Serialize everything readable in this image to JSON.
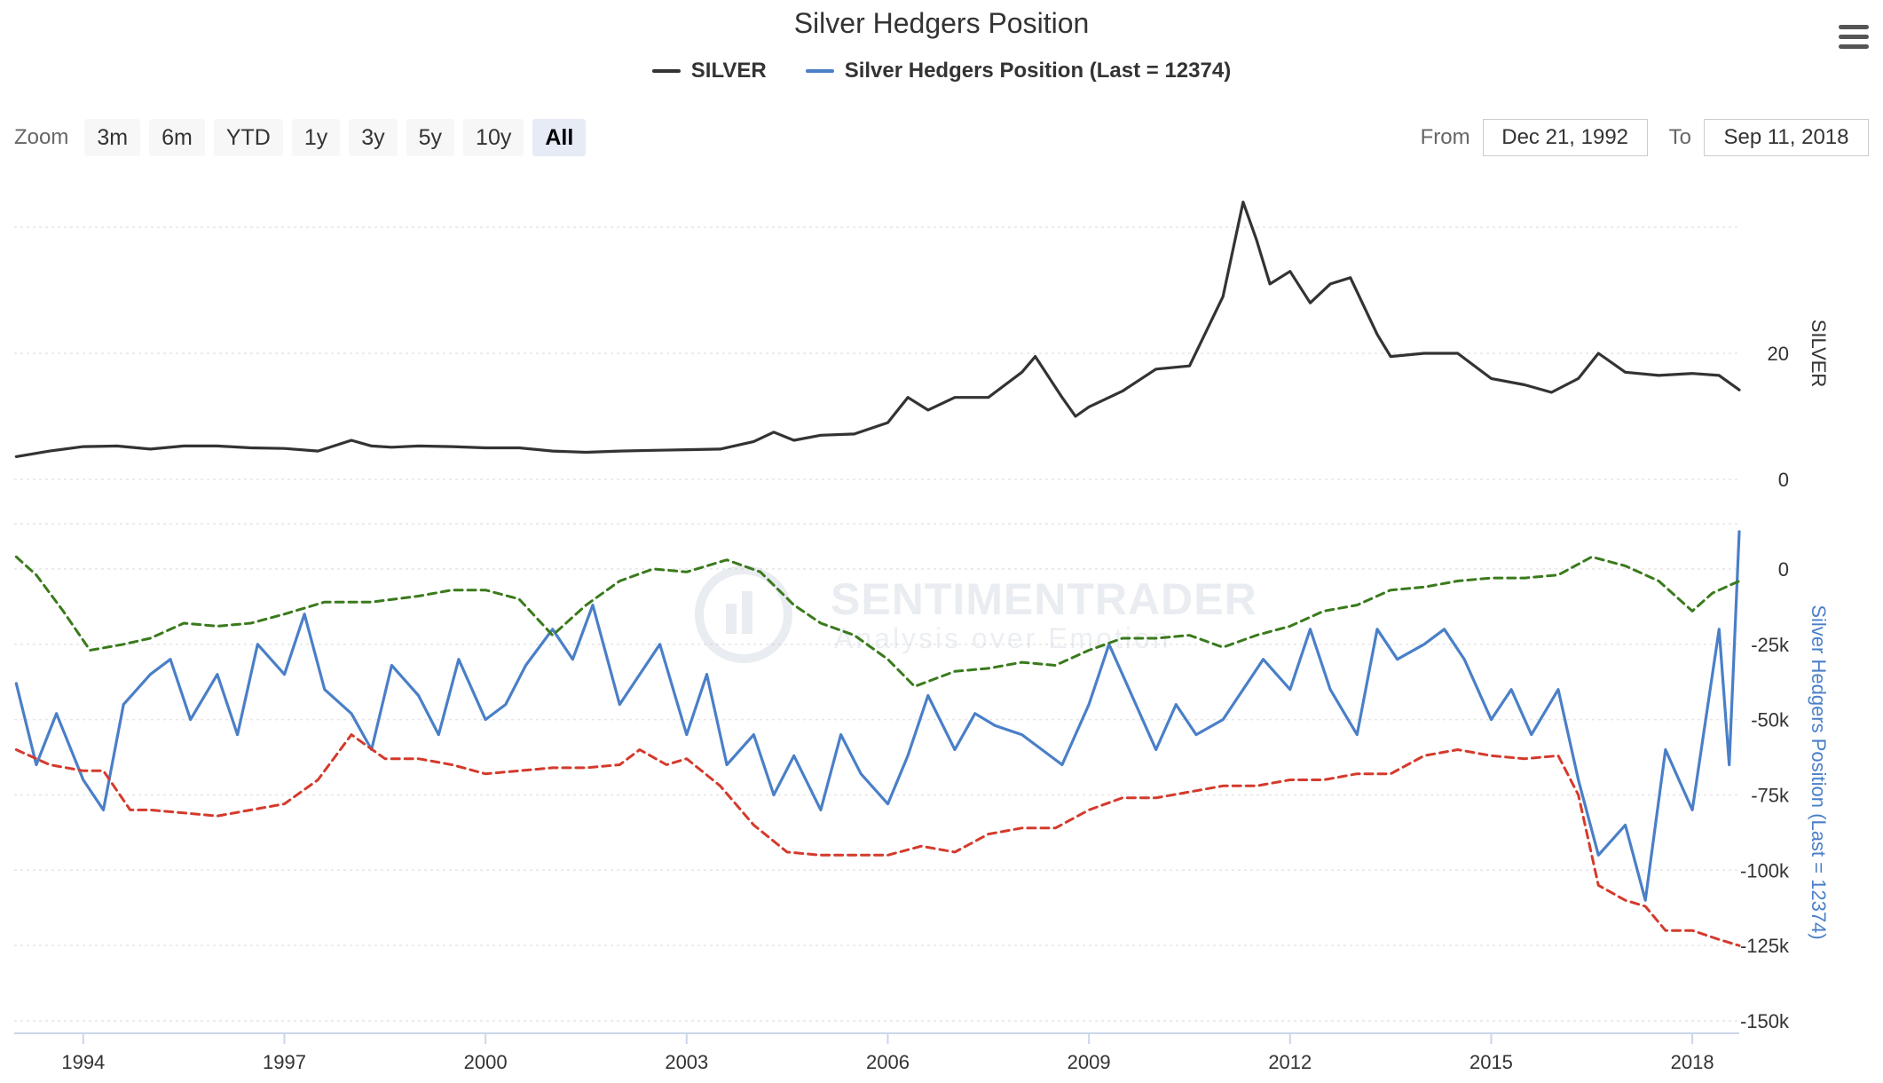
{
  "title": "Silver Hedgers Position",
  "menu_icon": "hamburger-menu-icon",
  "legend": [
    {
      "label": "SILVER",
      "color": "#333333"
    },
    {
      "label": "Silver Hedgers Position (Last = 12374)",
      "color": "#4a7fc8"
    }
  ],
  "zoom": {
    "label": "Zoom",
    "buttons": [
      "3m",
      "6m",
      "YTD",
      "1y",
      "3y",
      "5y",
      "10y",
      "All"
    ],
    "active": "All"
  },
  "range": {
    "from_label": "From",
    "from_value": "Dec 21, 1992",
    "to_label": "To",
    "to_value": "Sep 11, 2018"
  },
  "watermark": {
    "line1": "SENTIMENTRADER",
    "line2": "Analysis over Emotion"
  },
  "chart_data": {
    "type": "line",
    "x_range": [
      1992.97,
      2018.7
    ],
    "x_ticks": [
      "1994",
      "1997",
      "2000",
      "2003",
      "2006",
      "2009",
      "2012",
      "2015",
      "2018"
    ],
    "x_tick_values": [
      1994,
      1997,
      2000,
      2003,
      2006,
      2009,
      2012,
      2015,
      2018
    ],
    "panels": [
      {
        "name": "price",
        "ylabel": "SILVER",
        "ylim": [
          0,
          40
        ],
        "y_ticks": [
          0,
          20
        ],
        "tick_labels": [
          "0",
          "20"
        ],
        "series": [
          {
            "name": "SILVER",
            "color": "#333333",
            "style": "solid",
            "x": [
              1993.0,
              1993.5,
              1994.0,
              1994.5,
              1995.0,
              1995.5,
              1996.0,
              1996.5,
              1997.0,
              1997.5,
              1998.0,
              1998.3,
              1998.6,
              1999.0,
              1999.5,
              2000.0,
              2000.5,
              2001.0,
              2001.5,
              2002.0,
              2002.5,
              2003.0,
              2003.5,
              2004.0,
              2004.3,
              2004.6,
              2005.0,
              2005.5,
              2006.0,
              2006.3,
              2006.6,
              2007.0,
              2007.5,
              2008.0,
              2008.2,
              2008.6,
              2008.8,
              2009.0,
              2009.5,
              2010.0,
              2010.5,
              2011.0,
              2011.3,
              2011.5,
              2011.7,
              2012.0,
              2012.3,
              2012.6,
              2012.9,
              2013.3,
              2013.5,
              2014.0,
              2014.5,
              2015.0,
              2015.5,
              2015.9,
              2016.3,
              2016.6,
              2017.0,
              2017.5,
              2018.0,
              2018.4,
              2018.7
            ],
            "y": [
              3.6,
              4.5,
              5.2,
              5.3,
              4.8,
              5.3,
              5.3,
              5.0,
              4.9,
              4.5,
              6.2,
              5.3,
              5.1,
              5.3,
              5.2,
              5.0,
              5.0,
              4.5,
              4.3,
              4.5,
              4.6,
              4.7,
              4.8,
              6.0,
              7.5,
              6.2,
              7.0,
              7.2,
              9.0,
              13.0,
              11.0,
              13.0,
              13.0,
              17.0,
              19.5,
              13.0,
              10.0,
              11.5,
              14.0,
              17.5,
              18.0,
              29.0,
              44.0,
              38.0,
              31.0,
              33.0,
              28.0,
              31.0,
              32.0,
              23.0,
              19.5,
              20.0,
              20.0,
              16.0,
              15.0,
              13.8,
              16.0,
              20.0,
              17.0,
              16.5,
              16.8,
              16.5,
              14.2
            ]
          }
        ]
      },
      {
        "name": "hedgers",
        "ylabel": "Silver Hedgers Position (Last = 12374)",
        "ylim": [
          -150000,
          15000
        ],
        "y_ticks": [
          0,
          -25000,
          -50000,
          -75000,
          -100000,
          -125000,
          -150000
        ],
        "tick_labels": [
          "0",
          "-25k",
          "-50k",
          "-75k",
          "-100k",
          "-125k",
          "-150k"
        ],
        "series": [
          {
            "name": "Silver Hedgers Position",
            "color": "#4a7fc8",
            "style": "solid",
            "x": [
              1993.0,
              1993.3,
              1993.6,
              1994.0,
              1994.3,
              1994.6,
              1995.0,
              1995.3,
              1995.6,
              1996.0,
              1996.3,
              1996.6,
              1997.0,
              1997.3,
              1997.6,
              1998.0,
              1998.3,
              1998.6,
              1999.0,
              1999.3,
              1999.6,
              2000.0,
              2000.3,
              2000.6,
              2001.0,
              2001.3,
              2001.6,
              2002.0,
              2002.3,
              2002.6,
              2003.0,
              2003.3,
              2003.6,
              2004.0,
              2004.3,
              2004.6,
              2005.0,
              2005.3,
              2005.6,
              2006.0,
              2006.3,
              2006.6,
              2007.0,
              2007.3,
              2007.6,
              2008.0,
              2008.3,
              2008.6,
              2009.0,
              2009.3,
              2009.6,
              2010.0,
              2010.3,
              2010.6,
              2011.0,
              2011.3,
              2011.6,
              2012.0,
              2012.3,
              2012.6,
              2013.0,
              2013.3,
              2013.6,
              2014.0,
              2014.3,
              2014.6,
              2015.0,
              2015.3,
              2015.6,
              2016.0,
              2016.3,
              2016.6,
              2017.0,
              2017.3,
              2017.6,
              2018.0,
              2018.2,
              2018.4,
              2018.55,
              2018.7
            ],
            "y": [
              -38000,
              -65000,
              -48000,
              -70000,
              -80000,
              -45000,
              -35000,
              -30000,
              -50000,
              -35000,
              -55000,
              -25000,
              -35000,
              -15000,
              -40000,
              -48000,
              -60000,
              -32000,
              -42000,
              -55000,
              -30000,
              -50000,
              -45000,
              -32000,
              -20000,
              -30000,
              -12000,
              -45000,
              -35000,
              -25000,
              -55000,
              -35000,
              -65000,
              -55000,
              -75000,
              -62000,
              -80000,
              -55000,
              -68000,
              -78000,
              -62000,
              -42000,
              -60000,
              -48000,
              -52000,
              -55000,
              -60000,
              -65000,
              -45000,
              -25000,
              -40000,
              -60000,
              -45000,
              -55000,
              -50000,
              -40000,
              -30000,
              -40000,
              -20000,
              -40000,
              -55000,
              -20000,
              -30000,
              -25000,
              -20000,
              -30000,
              -50000,
              -40000,
              -55000,
              -40000,
              -70000,
              -95000,
              -85000,
              -110000,
              -60000,
              -80000,
              -50000,
              -20000,
              -65000,
              12374
            ]
          },
          {
            "name": "upper band",
            "color": "#3a7a1c",
            "style": "dashed",
            "x": [
              1993.0,
              1993.3,
              1993.7,
              1994.1,
              1994.6,
              1995.0,
              1995.5,
              1996.0,
              1996.5,
              1997.0,
              1997.6,
              1998.3,
              1999.0,
              1999.5,
              2000.0,
              2000.5,
              2001.0,
              2001.5,
              2002.0,
              2002.5,
              2003.0,
              2003.6,
              2004.1,
              2004.6,
              2005.0,
              2005.5,
              2006.0,
              2006.4,
              2007.0,
              2007.5,
              2008.0,
              2008.5,
              2009.0,
              2009.5,
              2010.0,
              2010.5,
              2011.0,
              2011.5,
              2012.0,
              2012.5,
              2013.0,
              2013.5,
              2014.0,
              2014.5,
              2015.0,
              2015.5,
              2016.0,
              2016.5,
              2017.0,
              2017.5,
              2018.0,
              2018.3,
              2018.7
            ],
            "y": [
              4000,
              -2000,
              -14000,
              -27000,
              -25000,
              -23000,
              -18000,
              -19000,
              -18000,
              -15000,
              -11000,
              -11000,
              -9000,
              -7000,
              -7000,
              -10000,
              -22000,
              -12000,
              -4000,
              0,
              -1000,
              3000,
              -1000,
              -12000,
              -18000,
              -22000,
              -30000,
              -39000,
              -34000,
              -33000,
              -31000,
              -32000,
              -27000,
              -23000,
              -23000,
              -22000,
              -26000,
              -22000,
              -19000,
              -14000,
              -12000,
              -7000,
              -6000,
              -4000,
              -3000,
              -3000,
              -2000,
              4000,
              1000,
              -4000,
              -14000,
              -8000,
              -4000
            ]
          },
          {
            "name": "lower band",
            "color": "#d43a2c",
            "style": "dashed",
            "x": [
              1993.0,
              1993.5,
              1994.0,
              1994.3,
              1994.7,
              1995.0,
              1995.5,
              1996.0,
              1996.5,
              1997.0,
              1997.5,
              1998.0,
              1998.5,
              1999.0,
              1999.5,
              2000.0,
              2000.5,
              2001.0,
              2001.5,
              2002.0,
              2002.3,
              2002.7,
              2003.0,
              2003.5,
              2004.0,
              2004.5,
              2005.0,
              2005.5,
              2006.0,
              2006.5,
              2007.0,
              2007.5,
              2008.0,
              2008.5,
              2009.0,
              2009.5,
              2010.0,
              2010.5,
              2011.0,
              2011.5,
              2012.0,
              2012.5,
              2013.0,
              2013.5,
              2014.0,
              2014.5,
              2015.0,
              2015.5,
              2016.0,
              2016.3,
              2016.6,
              2017.0,
              2017.3,
              2017.6,
              2018.0,
              2018.4,
              2018.7
            ],
            "y": [
              -60000,
              -65000,
              -67000,
              -67000,
              -80000,
              -80000,
              -81000,
              -82000,
              -80000,
              -78000,
              -70000,
              -55000,
              -63000,
              -63000,
              -65000,
              -68000,
              -67000,
              -66000,
              -66000,
              -65000,
              -60000,
              -65000,
              -63000,
              -72000,
              -85000,
              -94000,
              -95000,
              -95000,
              -95000,
              -92000,
              -94000,
              -88000,
              -86000,
              -86000,
              -80000,
              -76000,
              -76000,
              -74000,
              -72000,
              -72000,
              -70000,
              -70000,
              -68000,
              -68000,
              -62000,
              -60000,
              -62000,
              -63000,
              -62000,
              -75000,
              -105000,
              -110000,
              -112000,
              -120000,
              -120000,
              -123000,
              -125000
            ]
          }
        ]
      }
    ]
  }
}
